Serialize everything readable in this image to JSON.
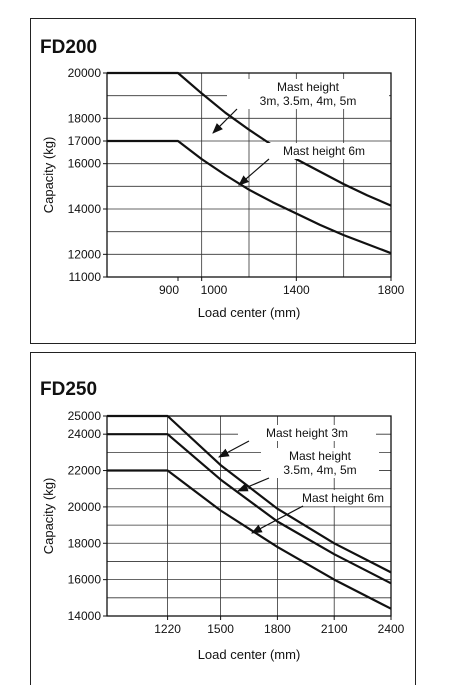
{
  "chart_data": [
    {
      "type": "line",
      "title": "FD200",
      "xlabel": "Load center (mm)",
      "ylabel": "Capacity (kg)",
      "xlim": [
        600,
        1800
      ],
      "ylim": [
        11000,
        20000
      ],
      "x_ticks": [
        900,
        1000,
        1400,
        1800
      ],
      "x_tick_labels": [
        "900",
        "1000",
        "1400",
        "1800"
      ],
      "y_ticks": [
        11000,
        12000,
        14000,
        16000,
        17000,
        18000,
        20000
      ],
      "y_tick_labels": [
        "11000",
        "12000",
        "14000",
        "16000",
        "17000",
        "18000",
        "20000"
      ],
      "series": [
        {
          "label_lines": [
            "Mast height",
            "3m, 3.5m, 4m, 5m"
          ],
          "x": [
            600,
            900,
            1000,
            1100,
            1200,
            1300,
            1400,
            1500,
            1600,
            1700,
            1800
          ],
          "values": [
            20000,
            20000,
            19100,
            18250,
            17500,
            16800,
            16200,
            15650,
            15100,
            14600,
            14150
          ]
        },
        {
          "label_lines": [
            "Mast height 6m"
          ],
          "x": [
            600,
            900,
            1000,
            1100,
            1200,
            1300,
            1400,
            1500,
            1600,
            1700,
            1800
          ],
          "values": [
            17000,
            17000,
            16200,
            15500,
            14850,
            14300,
            13800,
            13300,
            12850,
            12450,
            12050
          ]
        }
      ]
    },
    {
      "type": "line",
      "title": "FD250",
      "xlabel": "Load center (mm)",
      "ylabel": "Capacity (kg)",
      "xlim": [
        900,
        2400
      ],
      "ylim": [
        14000,
        25000
      ],
      "x_ticks": [
        1220,
        1500,
        1800,
        2100,
        2400
      ],
      "x_tick_labels": [
        "1220",
        "1500",
        "1800",
        "2100",
        "2400"
      ],
      "y_ticks": [
        14000,
        16000,
        18000,
        20000,
        22000,
        24000,
        25000
      ],
      "y_tick_labels": [
        "14000",
        "16000",
        "18000",
        "20000",
        "22000",
        "24000",
        "25000"
      ],
      "series": [
        {
          "label_lines": [
            "Mast height 3m"
          ],
          "x": [
            900,
            1220,
            1500,
            1800,
            2100,
            2400
          ],
          "values": [
            25000,
            25000,
            22300,
            19900,
            18000,
            16400
          ]
        },
        {
          "label_lines": [
            "Mast height",
            "3.5m, 4m, 5m"
          ],
          "x": [
            900,
            1220,
            1500,
            1800,
            2100,
            2400
          ],
          "values": [
            24000,
            24000,
            21500,
            19200,
            17400,
            15800
          ]
        },
        {
          "label_lines": [
            "Mast height 6m"
          ],
          "x": [
            900,
            1220,
            1500,
            1800,
            2100,
            2400
          ],
          "values": [
            22000,
            22000,
            19800,
            17800,
            16000,
            14400
          ]
        }
      ]
    }
  ]
}
